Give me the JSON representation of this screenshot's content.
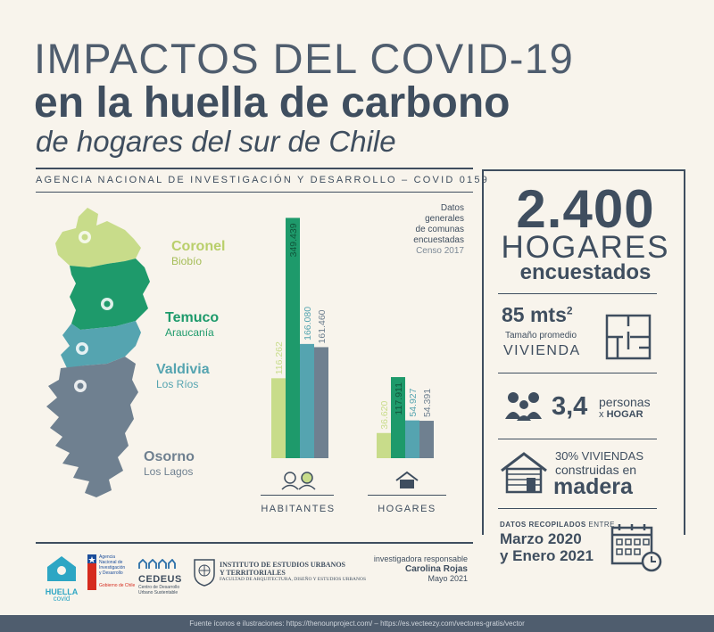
{
  "title": {
    "line1": "IMPACTOS DEL COVID-19",
    "line2": "en la huella de carbono",
    "line3": "de hogares del sur de Chile"
  },
  "agency": "AGENCIA NACIONAL DE INVESTIGACIÓN Y DESARROLLO – COVID 0159",
  "regions": [
    {
      "name": "Coronel",
      "sub": "Biobío",
      "color": "#c8dc8a"
    },
    {
      "name": "Temuco",
      "sub": "Araucanía",
      "color": "#1e9a6b"
    },
    {
      "name": "Valdivia",
      "sub": "Los Ríos",
      "color": "#55a4b0"
    },
    {
      "name": "Osorno",
      "sub": "Los Lagos",
      "color": "#6f8090"
    }
  ],
  "census_note": {
    "line1": "Datos",
    "line2": "generales",
    "line3": "de comunas",
    "line4": "encuestadas",
    "line5": "Censo 2017"
  },
  "chart_data": {
    "type": "bar",
    "categories": [
      "HABITANTES",
      "HOGARES"
    ],
    "series": [
      {
        "name": "Coronel",
        "values": [
          116262,
          36620
        ],
        "labels": [
          "116.262",
          "36.620"
        ]
      },
      {
        "name": "Temuco",
        "values": [
          349439,
          117911
        ],
        "labels": [
          "349.439",
          "117.911"
        ]
      },
      {
        "name": "Valdivia",
        "values": [
          166080,
          54927
        ],
        "labels": [
          "166.080",
          "54.927"
        ]
      },
      {
        "name": "Osorno",
        "values": [
          161460,
          54391
        ],
        "labels": [
          "161.460",
          "54.391"
        ]
      }
    ],
    "colors": [
      "#c8dc8a",
      "#1e9a6b",
      "#55a4b0",
      "#6f8090"
    ]
  },
  "stats": {
    "hogares_num": "2.400",
    "hogares_word": "HOGARES",
    "hogares_sub": "encuestados",
    "area_num": "85 mts",
    "area_sup": "2",
    "area_sub": "Tamaño promedio",
    "area_word": "VIVIENDA",
    "persons_num": "3,4",
    "persons_word": "personas",
    "persons_x": "x",
    "persons_hogar": "HOGAR",
    "wood_pct": "30% VIVIENDAS",
    "wood_built": "construidas en",
    "wood_word": "madera",
    "dates_label": "DATOS RECOPILADOS",
    "dates_between": "ENTRE",
    "dates_1": "Marzo 2020",
    "dates_2": "y Enero 2021"
  },
  "researcher": {
    "role": "investigadora responsable",
    "name": "Carolina Rojas",
    "date": "Mayo 2021"
  },
  "logos": {
    "huella_1": "HUELLA",
    "huella_2": "covid",
    "anid_1": "Agencia",
    "anid_2": "Nacional de",
    "anid_3": "Investigación",
    "anid_4": "y Desarrollo",
    "anid_gov": "Gobierno de Chile",
    "cedeus": "CEDEUS",
    "cedeus_sub1": "Centro de Desarrollo",
    "cedeus_sub2": "Urbano Sustentable",
    "ieu_1": "INSTITUTO DE ESTUDIOS URBANOS",
    "ieu_2": "Y TERRITORIALES",
    "ieu_3": "FACULTAD DE ARQUITECTURA, DISEÑO Y ESTUDIOS URBANOS"
  },
  "footer": "Fuente íconos e ilustraciones: https://thenounproject.com/  –  https://es.vecteezy.com/vectores-gratis/vector"
}
